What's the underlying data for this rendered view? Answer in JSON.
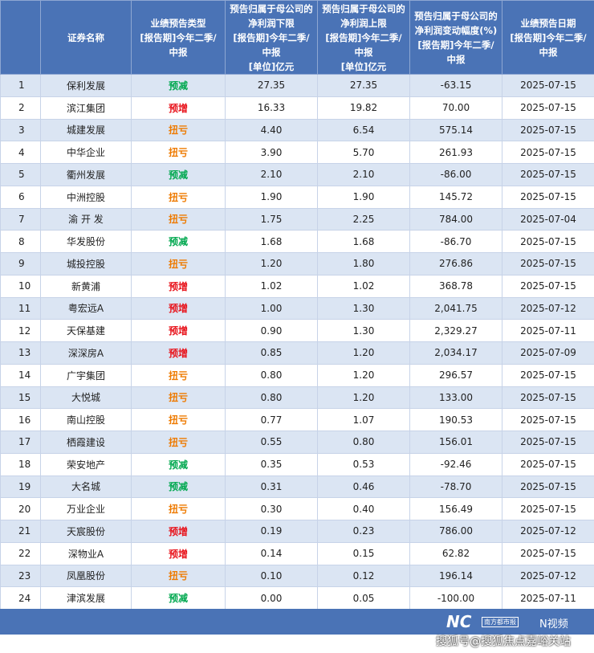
{
  "table": {
    "header": [
      "证券名称",
      "业绩预告类型\n[报告期]今年二季/\n中报",
      "预告归属于母公司的\n净利润下限\n[报告期]今年二季/\n中报\n[单位]亿元",
      "预告归属于母公司的\n净利润上限\n[报告期]今年二季/\n中报\n[单位]亿元",
      "预告归属于母公司的\n净利润变动幅度(%)\n[报告期]今年二季/\n中报",
      "业绩预告日期\n[报告期]今年二季/\n中报"
    ],
    "rows": [
      [
        "1",
        "保利发展",
        "预减",
        "27.35",
        "27.35",
        "-63.15",
        "2025-07-15"
      ],
      [
        "2",
        "滨江集团",
        "预增",
        "16.33",
        "19.82",
        "70.00",
        "2025-07-15"
      ],
      [
        "3",
        "城建发展",
        "扭亏",
        "4.40",
        "6.54",
        "575.14",
        "2025-07-15"
      ],
      [
        "4",
        "中华企业",
        "扭亏",
        "3.90",
        "5.70",
        "261.93",
        "2025-07-15"
      ],
      [
        "5",
        "衢州发展",
        "预减",
        "2.10",
        "2.10",
        "-86.00",
        "2025-07-15"
      ],
      [
        "6",
        "中洲控股",
        "扭亏",
        "1.90",
        "1.90",
        "145.72",
        "2025-07-15"
      ],
      [
        "7",
        "渝 开 发",
        "扭亏",
        "1.75",
        "2.25",
        "784.00",
        "2025-07-04"
      ],
      [
        "8",
        "华发股份",
        "预减",
        "1.68",
        "1.68",
        "-86.70",
        "2025-07-15"
      ],
      [
        "9",
        "城投控股",
        "扭亏",
        "1.20",
        "1.80",
        "276.86",
        "2025-07-15"
      ],
      [
        "10",
        "新黄浦",
        "预增",
        "1.02",
        "1.02",
        "368.78",
        "2025-07-15"
      ],
      [
        "11",
        "粤宏远A",
        "预增",
        "1.00",
        "1.30",
        "2,041.75",
        "2025-07-12"
      ],
      [
        "12",
        "天保基建",
        "预增",
        "0.90",
        "1.30",
        "2,329.27",
        "2025-07-11"
      ],
      [
        "13",
        "深深房A",
        "预增",
        "0.85",
        "1.20",
        "2,034.17",
        "2025-07-09"
      ],
      [
        "14",
        "广宇集团",
        "扭亏",
        "0.80",
        "1.20",
        "296.57",
        "2025-07-15"
      ],
      [
        "15",
        "大悦城",
        "扭亏",
        "0.80",
        "1.20",
        "133.00",
        "2025-07-15"
      ],
      [
        "16",
        "南山控股",
        "扭亏",
        "0.77",
        "1.07",
        "190.53",
        "2025-07-15"
      ],
      [
        "17",
        "栖霞建设",
        "扭亏",
        "0.55",
        "0.80",
        "156.01",
        "2025-07-15"
      ],
      [
        "18",
        "荣安地产",
        "预减",
        "0.35",
        "0.53",
        "-92.46",
        "2025-07-15"
      ],
      [
        "19",
        "大名城",
        "预减",
        "0.31",
        "0.46",
        "-78.70",
        "2025-07-15"
      ],
      [
        "20",
        "万业企业",
        "扭亏",
        "0.30",
        "0.40",
        "156.49",
        "2025-07-15"
      ],
      [
        "21",
        "天宸股份",
        "预增",
        "0.19",
        "0.23",
        "786.00",
        "2025-07-12"
      ],
      [
        "22",
        "深物业A",
        "预增",
        "0.14",
        "0.15",
        "62.82",
        "2025-07-15"
      ],
      [
        "23",
        "凤凰股份",
        "扭亏",
        "0.10",
        "0.12",
        "196.14",
        "2025-07-12"
      ],
      [
        "24",
        "津滨发展",
        "预减",
        "0.00",
        "0.05",
        "-100.00",
        "2025-07-11"
      ]
    ]
  },
  "footer": {
    "logo": "NC",
    "logo_text": "南方都市报",
    "video": "N视频",
    "watermark": "搜狐号@搜狐焦点嘉峪关站"
  }
}
